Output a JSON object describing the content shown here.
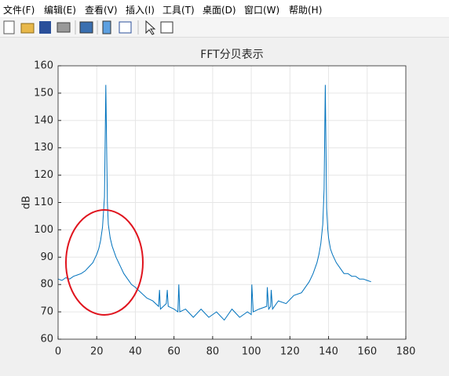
{
  "menu": [
    "文件(F)",
    "编辑(E)",
    "查看(V)",
    "插入(I)",
    "工具(T)",
    "桌面(D)",
    "窗口(W)",
    "帮助(H)"
  ],
  "chart_data": {
    "type": "line",
    "title": "FFT分贝表示",
    "ylabel": "dB",
    "x": [
      0,
      2,
      4,
      6,
      8,
      10,
      12,
      14,
      16,
      18,
      20,
      21,
      22,
      23,
      24,
      24.7,
      25.5,
      26,
      27,
      28,
      30,
      32,
      34,
      36,
      38,
      40,
      43,
      46,
      49,
      52,
      52.5,
      53,
      56,
      56.5,
      57,
      60,
      62,
      62.5,
      63,
      66,
      70,
      74,
      78,
      82,
      86,
      90,
      94,
      98,
      100,
      100.3,
      101,
      104,
      108,
      108.3,
      109,
      110,
      110.3,
      111,
      114,
      118,
      122,
      126,
      128,
      130,
      132,
      134,
      135,
      136,
      137,
      137.7,
      138.3,
      139,
      139.6,
      140,
      141,
      142,
      144,
      146,
      148,
      150,
      152,
      154,
      156,
      158,
      160,
      162
    ],
    "series": [
      {
        "color": "#0072bd",
        "values": [
          82,
          81.5,
          82.5,
          82,
          83,
          83.5,
          84,
          85,
          86.5,
          88,
          91,
          93,
          96,
          101,
          112,
          153,
          110,
          102,
          97,
          94,
          90,
          87,
          84,
          82,
          80,
          79,
          77,
          75,
          74,
          72,
          78,
          71,
          73,
          78,
          72,
          71,
          70,
          80,
          70,
          71,
          68,
          71,
          68,
          70,
          67,
          71,
          68,
          70,
          69,
          80,
          70,
          71,
          72,
          79,
          71,
          72,
          78,
          71,
          74,
          73,
          76,
          77,
          79,
          81,
          84,
          88,
          91,
          95,
          102,
          115,
          153,
          108,
          100,
          97,
          93,
          91,
          88,
          86,
          84,
          84,
          83,
          83,
          82,
          82,
          81.5,
          81
        ]
      }
    ],
    "xlim": [
      0,
      180
    ],
    "ylim": [
      60,
      160
    ],
    "xticks": [
      0,
      20,
      40,
      60,
      80,
      100,
      120,
      140,
      160,
      180
    ],
    "yticks": [
      60,
      70,
      80,
      90,
      100,
      110,
      120,
      130,
      140,
      150,
      160
    ],
    "grid": true
  }
}
